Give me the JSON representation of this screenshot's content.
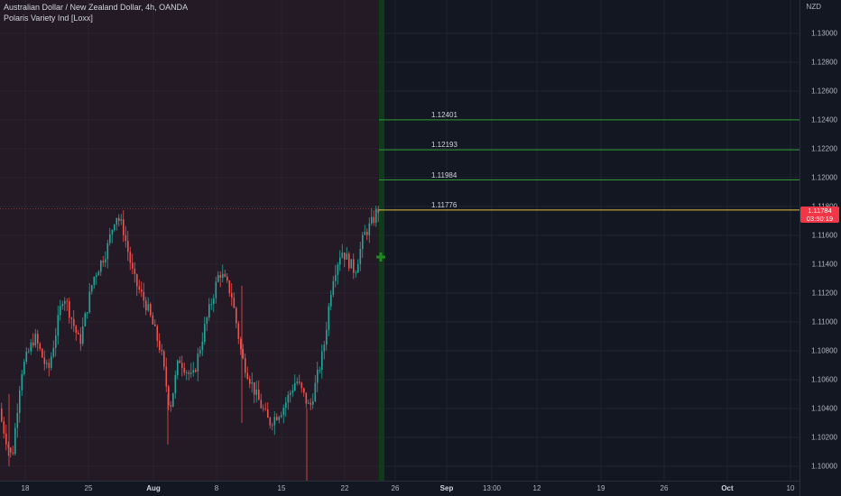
{
  "legend": {
    "symbol_line": "Australian Dollar / New Zealand Dollar, 4h, OANDA",
    "indicator_line": "Polaris Variety Ind [Loxx]"
  },
  "price_scale": {
    "currency": "NZD",
    "ticks": [
      "1.13000",
      "1.12800",
      "1.12600",
      "1.12400",
      "1.12200",
      "1.12000",
      "1.11800",
      "1.11600",
      "1.11400",
      "1.11200",
      "1.11000",
      "1.10800",
      "1.10600",
      "1.10400",
      "1.10200",
      "1.10000"
    ],
    "current_price": "1.11784",
    "countdown": "03:50:19"
  },
  "time_scale": {
    "ticks": [
      {
        "label": "18",
        "bold": false
      },
      {
        "label": "25",
        "bold": false
      },
      {
        "label": "Aug",
        "bold": true
      },
      {
        "label": "8",
        "bold": false
      },
      {
        "label": "15",
        "bold": false
      },
      {
        "label": "22",
        "bold": false
      },
      {
        "label": "26",
        "bold": false
      },
      {
        "label": "Sep",
        "bold": true
      },
      {
        "label": "13:00",
        "bold": false
      },
      {
        "label": "12",
        "bold": false
      },
      {
        "label": "19",
        "bold": false
      },
      {
        "label": "26",
        "bold": false
      },
      {
        "label": "Oct",
        "bold": true
      },
      {
        "label": "10",
        "bold": false
      }
    ]
  },
  "levels": [
    {
      "label": "1.12401",
      "price": 1.12401,
      "color": "#2e9b2e"
    },
    {
      "label": "1.12193",
      "price": 1.12193,
      "color": "#2e9b2e"
    },
    {
      "label": "1.11984",
      "price": 1.11984,
      "color": "#2e9b2e"
    },
    {
      "label": "1.11776",
      "price": 1.11776,
      "color": "#e0c040"
    }
  ],
  "colors": {
    "up_candle": "#26a69a",
    "down_candle": "#ef5350",
    "history_background": "#231a26",
    "signal_bar": "#0f3b1a",
    "signal_marker": "#1e8a1e",
    "price_tag": "#f23645"
  },
  "icons": {
    "signal_marker": "plus-icon"
  }
}
